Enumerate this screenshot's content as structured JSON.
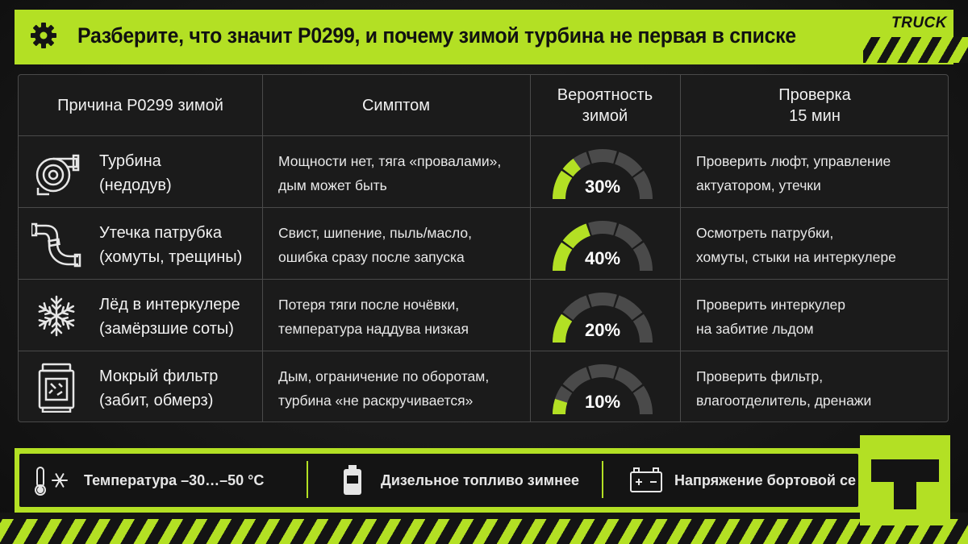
{
  "header": {
    "title": "Разберите, что значит P0299, и почему зимой турбина не первая в списке",
    "brand": "TRUCK",
    "icon": "gear-icon"
  },
  "colors": {
    "accent": "#b3e024",
    "background": "#141414",
    "gauge_inactive": "#4a4a4a"
  },
  "table": {
    "headers": {
      "cause": "Причина P0299 зимой",
      "symptom": "Симптом",
      "probability": "Вероятность\nзимой",
      "check": "Проверка\n15 мин"
    },
    "rows": [
      {
        "icon": "turbo-icon",
        "cause_line1": "Турбина",
        "cause_line2": "(недодув)",
        "symptom_line1": "Мощности нет, тяга «провалами»,",
        "symptom_line2": "дым может быть",
        "probability": "30%",
        "probability_value": 30,
        "check_line1": "Проверить люфт, управление",
        "check_line2": "актуатором, утечки"
      },
      {
        "icon": "pipe-icon",
        "cause_line1": "Утечка патрубка",
        "cause_line2": "(хомуты, трещины)",
        "symptom_line1": "Свист, шипение, пыль/масло,",
        "symptom_line2": "ошибка сразу после запуска",
        "probability": "40%",
        "probability_value": 40,
        "check_line1": "Осмотреть патрубки,",
        "check_line2": "хомуты, стыки на интеркулере"
      },
      {
        "icon": "snowflake-icon",
        "cause_line1": "Лёд в интеркулере",
        "cause_line2": "(замёрзшие соты)",
        "symptom_line1": "Потеря тяги после ночёвки,",
        "symptom_line2": "температура наддува низкая",
        "probability": "20%",
        "probability_value": 20,
        "check_line1": "Проверить интеркулер",
        "check_line2": "на забитие льдом"
      },
      {
        "icon": "filter-icon",
        "cause_line1": "Мокрый фильтр",
        "cause_line2": "(забит, обмерз)",
        "symptom_line1": "Дым, ограничение по оборотам,",
        "symptom_line2": "турбина «не раскручивается»",
        "probability": "10%",
        "probability_value": 10,
        "check_line1": "Проверить фильтр,",
        "check_line2": "влагоотделитель, дренажи"
      }
    ]
  },
  "footer": {
    "items": [
      {
        "icon": "thermometer-snowflake-icon",
        "label": "Температура –30…–50 °С"
      },
      {
        "icon": "fuel-canister-icon",
        "label": "Дизельное топливо зимнее"
      },
      {
        "icon": "battery-icon",
        "label": "Напряжение бортовой се"
      }
    ]
  },
  "logo": {
    "icon": "truck-t-logo-icon"
  }
}
